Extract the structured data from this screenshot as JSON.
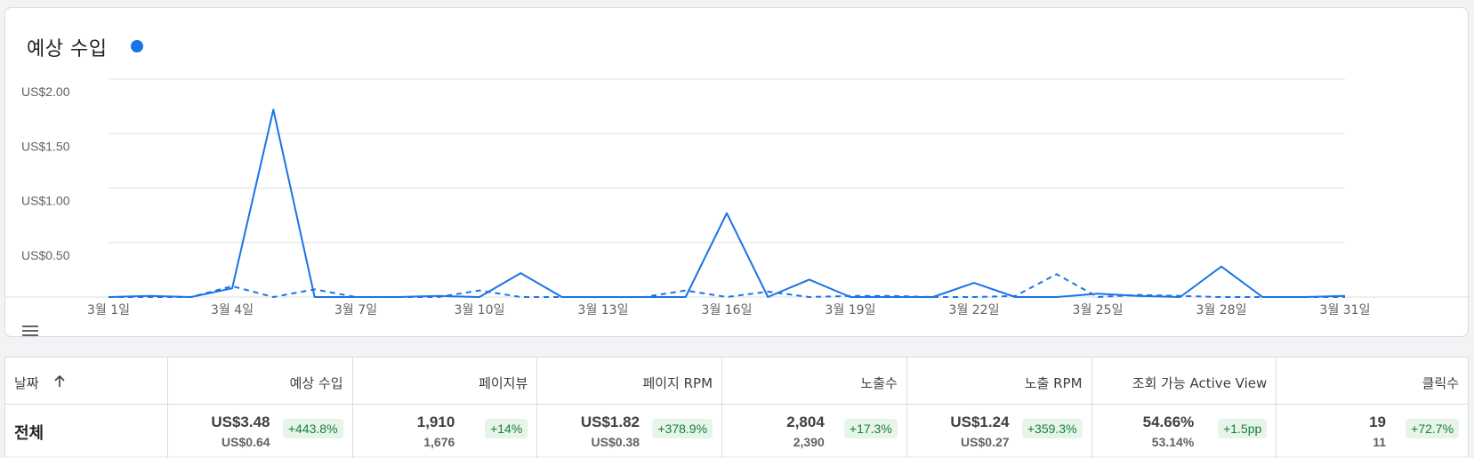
{
  "card": {
    "title": "예상 수입",
    "dot_color": "#1a73e8"
  },
  "chart_data": {
    "type": "line",
    "y_ticks": [
      "US$2.00",
      "US$1.50",
      "US$1.00",
      "US$0.50"
    ],
    "x_labels": [
      "3월 1일",
      "3월 4일",
      "3월 7일",
      "3월 10일",
      "3월 13일",
      "3월 16일",
      "3월 19일",
      "3월 22일",
      "3월 25일",
      "3월 28일",
      "3월 31일"
    ],
    "x": [
      1,
      2,
      3,
      4,
      5,
      6,
      7,
      8,
      9,
      10,
      11,
      12,
      13,
      14,
      15,
      16,
      17,
      18,
      19,
      20,
      21,
      22,
      23,
      24,
      25,
      26,
      27,
      28,
      29,
      30,
      31
    ],
    "ylim": [
      0,
      2.0
    ],
    "grid": true,
    "series": [
      {
        "style": "solid",
        "color": "#1a73e8",
        "values": [
          0.0,
          0.01,
          0.0,
          0.08,
          1.72,
          0.0,
          0.0,
          0.0,
          0.01,
          0.0,
          0.22,
          0.0,
          0.0,
          0.0,
          0.0,
          0.77,
          0.0,
          0.16,
          0.0,
          0.0,
          0.0,
          0.13,
          0.0,
          0.0,
          0.03,
          0.01,
          0.0,
          0.28,
          0.0,
          0.0,
          0.01
        ]
      },
      {
        "style": "dashed",
        "color": "#1a73e8",
        "values": [
          0.0,
          0.0,
          0.0,
          0.1,
          0.0,
          0.07,
          0.0,
          0.0,
          0.0,
          0.06,
          0.0,
          0.0,
          0.0,
          0.0,
          0.06,
          0.0,
          0.05,
          0.0,
          0.01,
          0.01,
          0.0,
          0.0,
          0.01,
          0.21,
          0.0,
          0.02,
          0.01,
          0.0,
          0.0,
          0.0,
          0.0
        ]
      }
    ]
  },
  "table": {
    "headers": [
      "날짜",
      "예상 수입",
      "페이지뷰",
      "페이지 RPM",
      "노출수",
      "노출 RPM",
      "조회 가능 Active View",
      "클릭수"
    ],
    "sort_icon": "arrow-up-icon",
    "total": {
      "label": "전체",
      "cells": [
        {
          "main": "US$3.48",
          "sub": "US$0.64",
          "change": "+443.8%"
        },
        {
          "main": "1,910",
          "sub": "1,676",
          "change": "+14%"
        },
        {
          "main": "US$1.82",
          "sub": "US$0.38",
          "change": "+378.9%"
        },
        {
          "main": "2,804",
          "sub": "2,390",
          "change": "+17.3%"
        },
        {
          "main": "US$1.24",
          "sub": "US$0.27",
          "change": "+359.3%"
        },
        {
          "main": "54.66%",
          "sub": "53.14%",
          "change": "+1.5pp"
        },
        {
          "main": "19",
          "sub": "11",
          "change": "+72.7%"
        }
      ]
    }
  }
}
